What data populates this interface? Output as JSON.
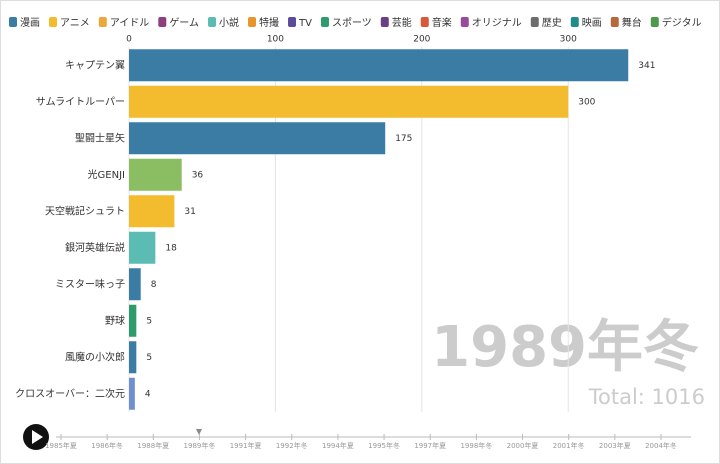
{
  "chart_data": {
    "type": "bar",
    "orientation": "horizontal",
    "legend": [
      {
        "name": "漫画",
        "color": "#3b7ca5"
      },
      {
        "name": "アニメ",
        "color": "#f3bb2e"
      },
      {
        "name": "アイドル",
        "color": "#f0a73a"
      },
      {
        "name": "ゲーム",
        "color": "#8e3f7e"
      },
      {
        "name": "小説",
        "color": "#5bbcb4"
      },
      {
        "name": "特撮",
        "color": "#e8952e"
      },
      {
        "name": "TV",
        "color": "#5b4b9a"
      },
      {
        "name": "スポーツ",
        "color": "#2e9a6e"
      },
      {
        "name": "芸能",
        "color": "#6b3f86"
      },
      {
        "name": "音楽",
        "color": "#d9583a"
      },
      {
        "name": "オリジナル",
        "color": "#9a4a9a"
      },
      {
        "name": "歴史",
        "color": "#6d6d6d"
      },
      {
        "name": "映画",
        "color": "#1f8c8c"
      },
      {
        "name": "舞台",
        "color": "#b8683a"
      },
      {
        "name": "デジタル",
        "color": "#4c9a4c"
      }
    ],
    "categories": [
      "キャプテン翼",
      "サムライトルーパー",
      "聖闘士星矢",
      "光GENJI",
      "天空戦記シュラト",
      "銀河英雄伝説",
      "ミスター味っ子",
      "野球",
      "風魔の小次郎",
      "クロスオーバー：二次元"
    ],
    "values": [
      341,
      300,
      175,
      36,
      31,
      18,
      8,
      5,
      5,
      4
    ],
    "colors": [
      "#3b7ca5",
      "#f3bb2e",
      "#3b7ca5",
      "#8bbd62",
      "#f3bb2e",
      "#5bbcb4",
      "#3b7ca5",
      "#2e9a6e",
      "#3b7ca5",
      "#6f8fd0"
    ],
    "xlim": [
      0,
      390
    ],
    "xticks": [
      0,
      100,
      200,
      300
    ],
    "grid": true,
    "period": "1989年冬",
    "total": "Total: 1016",
    "timeline": [
      "1985年夏",
      "1986年冬",
      "1988年夏",
      "1989年冬",
      "1991年夏",
      "1992年冬",
      "1994年夏",
      "1995年冬",
      "1997年夏",
      "1998年冬",
      "2000年夏",
      "2001年冬",
      "2003年夏",
      "2004年冬"
    ]
  }
}
